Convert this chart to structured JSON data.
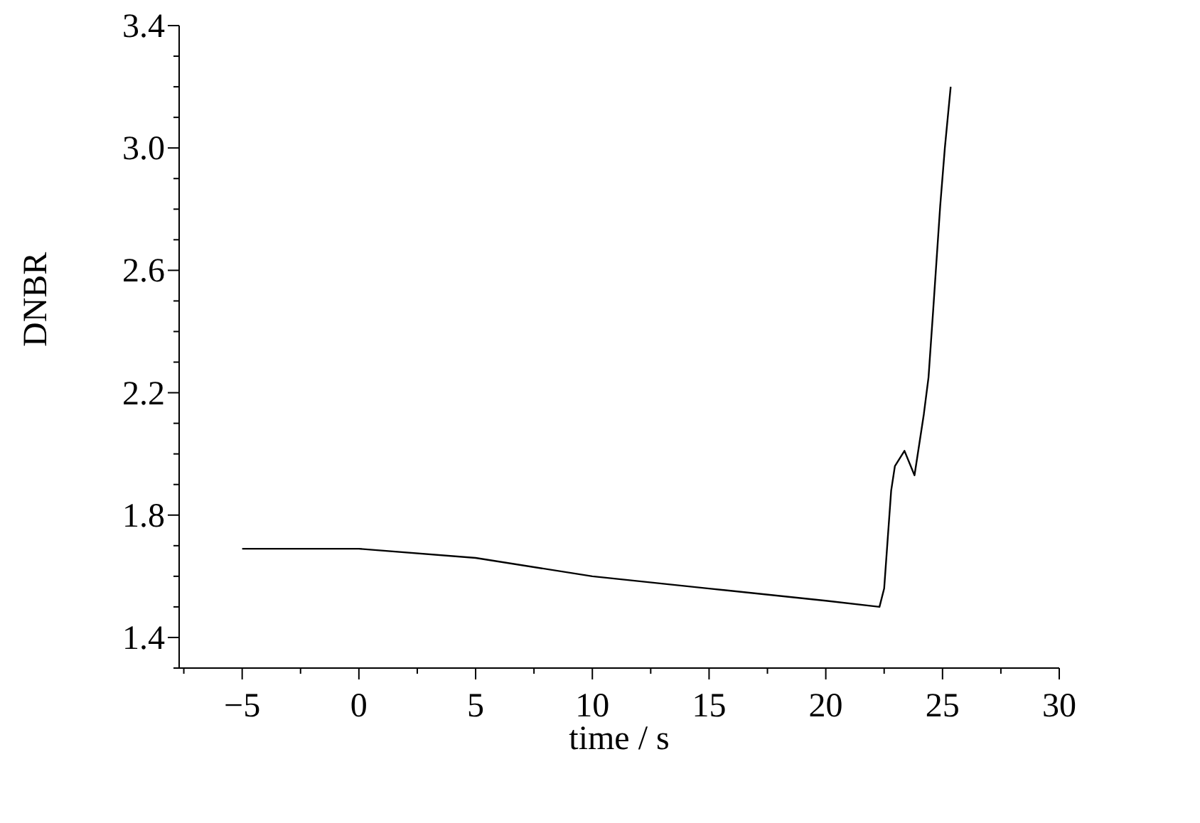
{
  "chart_data": {
    "type": "line",
    "xlabel": "time / s",
    "ylabel": "DNBR",
    "x": [
      -5,
      0,
      5,
      10,
      15,
      20,
      22.3,
      22.5,
      22.8,
      22.96,
      23.37,
      23.8,
      24.2,
      24.4,
      24.6,
      24.9,
      25.1,
      25.35
    ],
    "series": [
      {
        "color": "#000000",
        "values": [
          1.69,
          1.69,
          1.66,
          1.6,
          1.56,
          1.52,
          1.5,
          1.56,
          1.88,
          1.96,
          2.01,
          1.93,
          2.13,
          2.25,
          2.47,
          2.81,
          3.0,
          3.2
        ]
      }
    ],
    "xlim": [
      -7.7,
      30
    ],
    "xticks": [
      {
        "value": -7.5,
        "label": null
      },
      -5,
      {
        "value": -2.5,
        "label": null
      },
      0,
      {
        "value": 2.5,
        "label": null
      },
      5,
      {
        "value": 7.5,
        "label": null
      },
      10,
      {
        "value": 12.5,
        "label": null
      },
      15,
      {
        "value": 17.5,
        "label": null
      },
      20,
      {
        "value": 22.5,
        "label": null
      },
      25,
      {
        "value": 27.5,
        "label": null
      },
      30
    ],
    "ylim": [
      1.3,
      3.4
    ],
    "yticks": [
      {
        "value": 1.3,
        "label": null
      },
      {
        "value": 1.4,
        "label": "1.4"
      },
      {
        "value": 1.5,
        "label": null
      },
      {
        "value": 1.6,
        "label": null
      },
      {
        "value": 1.7,
        "label": null
      },
      {
        "value": 1.8,
        "label": "1.8"
      },
      {
        "value": 1.9,
        "label": null
      },
      {
        "value": 2.0,
        "label": null
      },
      {
        "value": 2.1,
        "label": null
      },
      {
        "value": 2.2,
        "label": "2.2"
      },
      {
        "value": 2.3,
        "label": null
      },
      {
        "value": 2.4,
        "label": null
      },
      {
        "value": 2.5,
        "label": null
      },
      {
        "value": 2.6,
        "label": "2.6"
      },
      {
        "value": 2.7,
        "label": null
      },
      {
        "value": 2.8,
        "label": null
      },
      {
        "value": 2.9,
        "label": null
      },
      {
        "value": 3.0,
        "label": "3.0"
      },
      {
        "value": 3.1,
        "label": null
      },
      {
        "value": 3.2,
        "label": null
      },
      {
        "value": 3.3,
        "label": null
      },
      {
        "value": 3.4,
        "label": "3.4"
      }
    ],
    "grid": false,
    "legend": false,
    "marker": "none",
    "line_style": "solid"
  }
}
